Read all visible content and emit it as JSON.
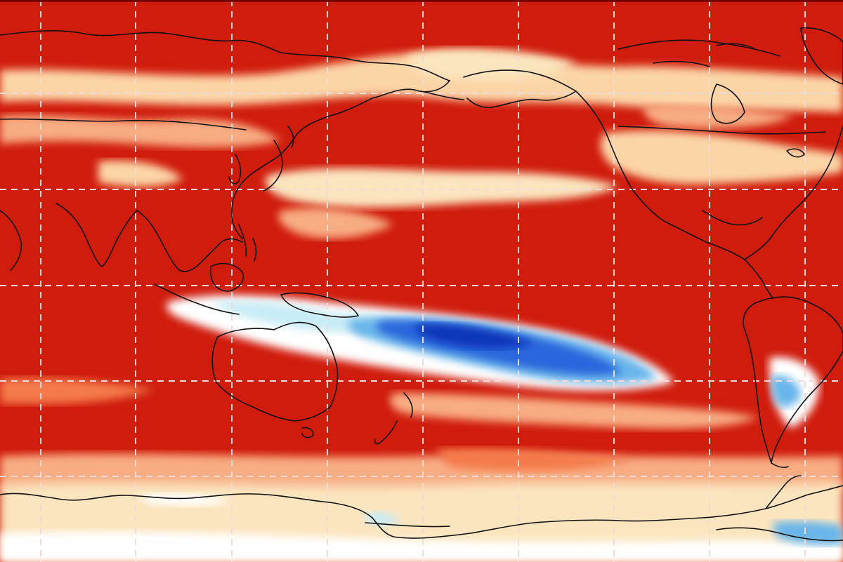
{
  "map": {
    "projection": "equirectangular-pacific-centered",
    "palette": {
      "deep_red": "#d01c0c",
      "red": "#e23a1c",
      "orange": "#f47a4c",
      "salmon": "#f8ac82",
      "peach": "#fcd5a6",
      "cream": "#fbe5be",
      "white": "#ffffff",
      "light_blue": "#c8ecf6",
      "sky_blue": "#69b6ea",
      "blue": "#2a66dd",
      "navy": "#1035b8",
      "coastline": "#111111",
      "gridline": "#f1dada",
      "frame": "#7a0000"
    },
    "gridlines": {
      "style": "dashed",
      "visible": true
    },
    "features": {
      "continents": [
        "eurasia",
        "north-america",
        "south-america",
        "australia",
        "new-zealand",
        "antarctica",
        "greenland",
        "maritime-continent"
      ],
      "anomaly_regions": [
        "arctic-warm-band",
        "north-pacific-cool-band",
        "tropical-pacific-cold-tongue",
        "southern-ocean-cool-band"
      ]
    }
  }
}
